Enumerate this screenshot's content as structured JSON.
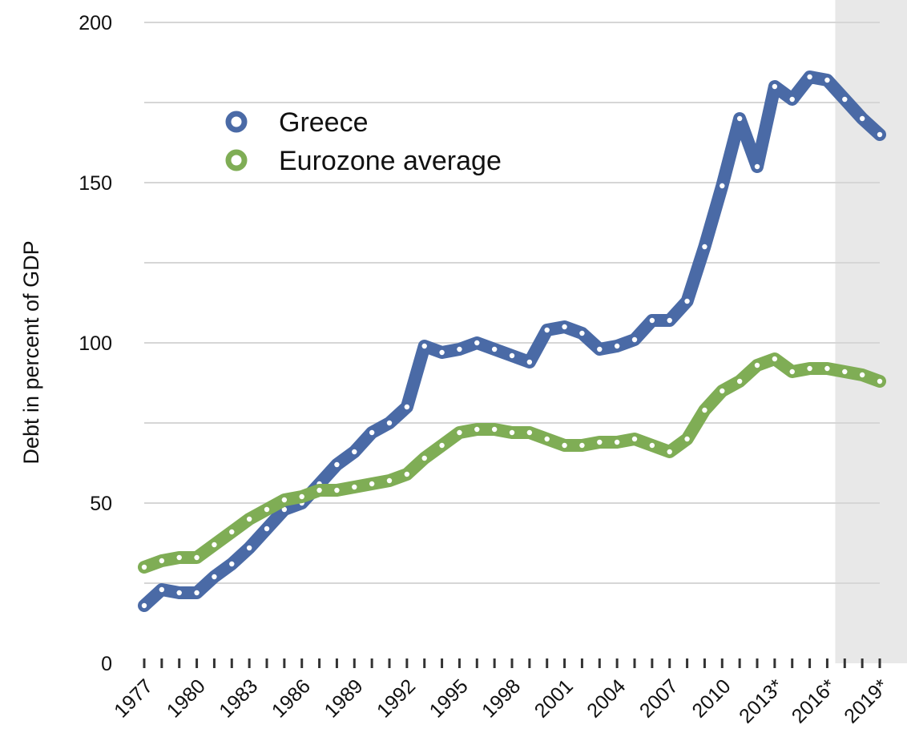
{
  "chart_data": {
    "type": "line",
    "ylabel": "Debt in percent of GDP",
    "xlabel": "",
    "title": "",
    "ylim": [
      0,
      200
    ],
    "yticks": [
      0,
      50,
      100,
      150,
      200
    ],
    "xticks": [
      "1977",
      "1980",
      "1983",
      "1986",
      "1989",
      "1992",
      "1995",
      "1998",
      "2001",
      "2004",
      "2007",
      "2010",
      "2013*",
      "2016*",
      "2019*"
    ],
    "x": [
      1977,
      1978,
      1979,
      1980,
      1981,
      1982,
      1983,
      1984,
      1985,
      1986,
      1987,
      1988,
      1989,
      1990,
      1991,
      1992,
      1993,
      1994,
      1995,
      1996,
      1997,
      1998,
      1999,
      2000,
      2001,
      2002,
      2003,
      2004,
      2005,
      2006,
      2007,
      2008,
      2009,
      2010,
      2011,
      2012,
      2013,
      2014,
      2015,
      2016,
      2017,
      2018,
      2019
    ],
    "forecast_start": 2016,
    "grid": true,
    "legend_position": "top-left",
    "series": [
      {
        "name": "Greece",
        "color": "#4a6aa6",
        "values": [
          18,
          23,
          22,
          22,
          27,
          31,
          36,
          42,
          48,
          50,
          56,
          62,
          66,
          72,
          75,
          80,
          99,
          97,
          98,
          100,
          98,
          96,
          94,
          104,
          105,
          103,
          98,
          99,
          101,
          107,
          107,
          113,
          130,
          149,
          170,
          155,
          180,
          176,
          183,
          182,
          176,
          170,
          165
        ]
      },
      {
        "name": "Eurozone average",
        "color": "#7fad55",
        "values": [
          30,
          32,
          33,
          33,
          37,
          41,
          45,
          48,
          51,
          52,
          54,
          54,
          55,
          56,
          57,
          59,
          64,
          68,
          72,
          73,
          73,
          72,
          72,
          70,
          68,
          68,
          69,
          69,
          70,
          68,
          66,
          70,
          79,
          85,
          88,
          93,
          95,
          91,
          92,
          92,
          91,
          90,
          88
        ]
      }
    ]
  }
}
